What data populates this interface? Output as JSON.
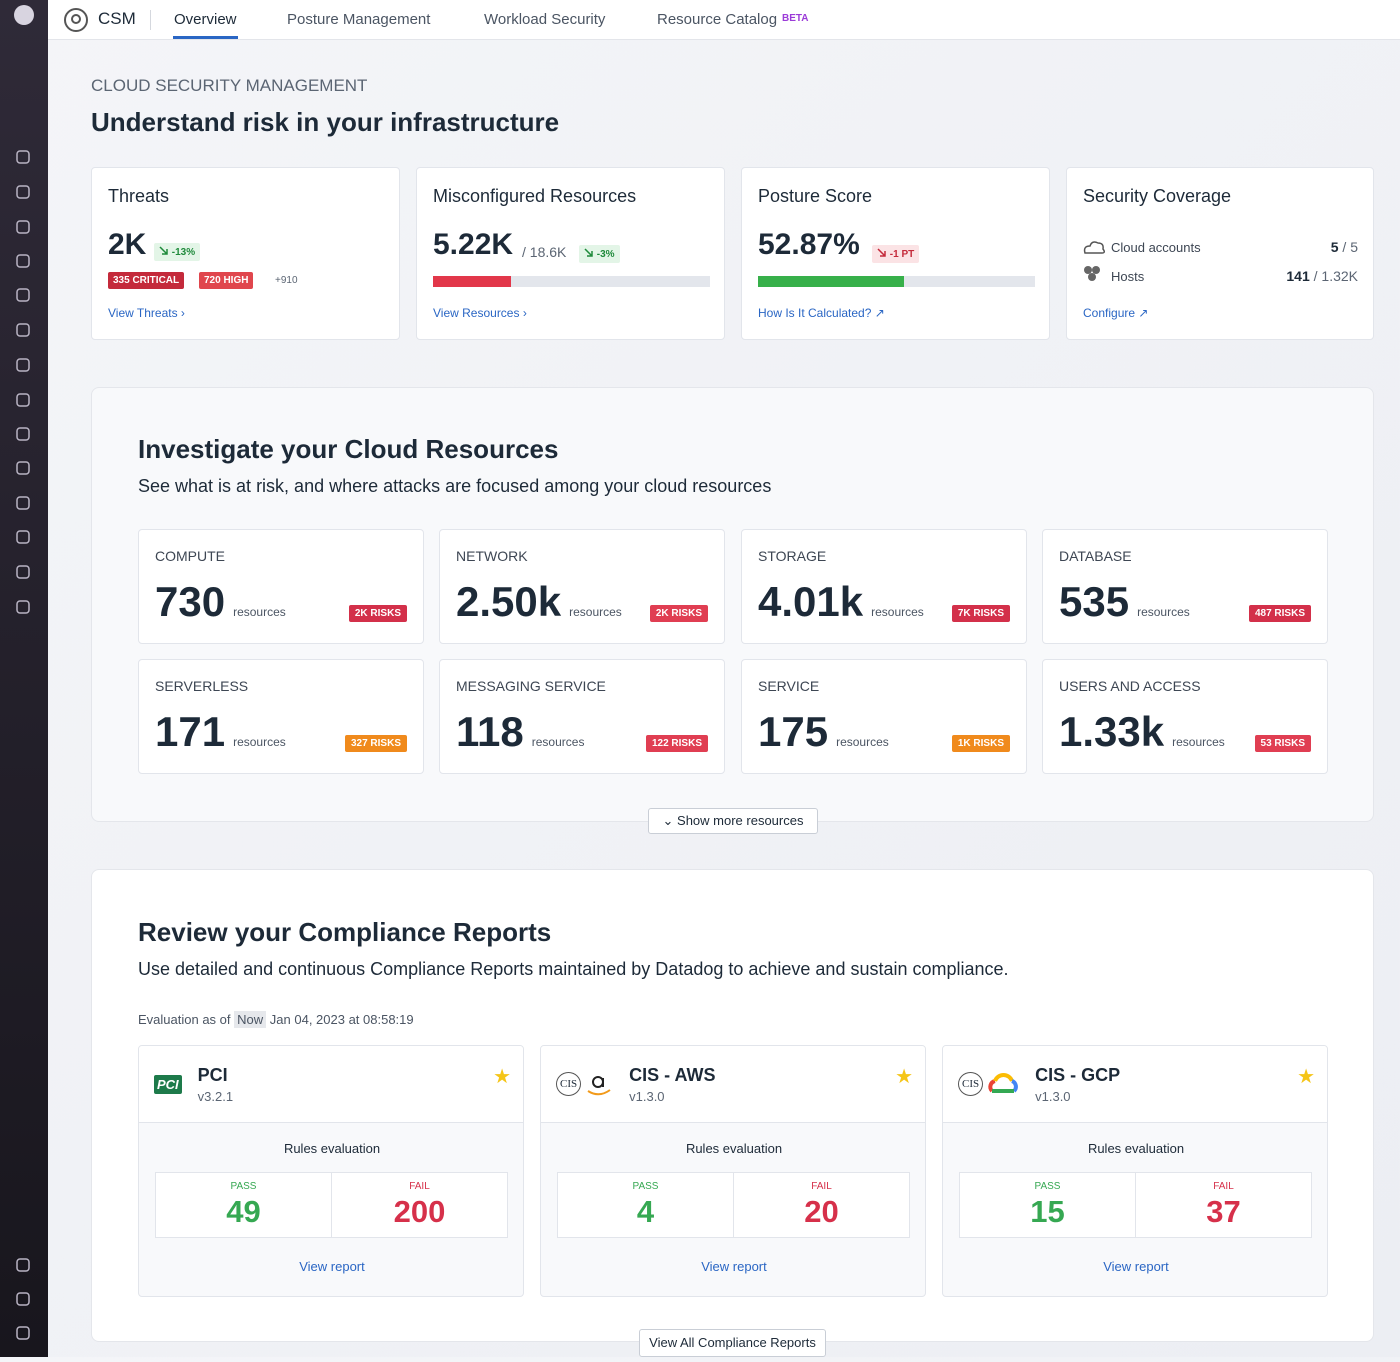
{
  "nav": {
    "app": "CSM",
    "tabs": [
      "Overview",
      "Posture Management",
      "Workload Security",
      "Resource Catalog"
    ],
    "badge": "BETA"
  },
  "header": {
    "eyebrow": "CLOUD SECURITY MANAGEMENT",
    "title": "Understand risk in your infrastructure"
  },
  "summary": {
    "threats": {
      "title": "Threats",
      "value": "2K",
      "change": "-13%",
      "critical": "335 CRITICAL",
      "high": "720 HIGH",
      "more": "+910",
      "link": "View Threats"
    },
    "misconfigured": {
      "title": "Misconfigured Resources",
      "count": {
        "value": 5220,
        "label": "5.22K"
      },
      "total": {
        "value": 18600,
        "label": "/ 18.6K"
      },
      "change": "-3%",
      "link": "View Resources"
    },
    "posture": {
      "title": "Posture Score",
      "score": {
        "value": 52.87,
        "label": "52.87%"
      },
      "change": "-1 PT",
      "link": "How Is It Calculated?"
    },
    "coverage": {
      "title": "Security Coverage",
      "rows": [
        {
          "label": "Cloud accounts",
          "value": "5",
          "total": "/ 5"
        },
        {
          "label": "Hosts",
          "value": "141",
          "total": "/ 1.32K"
        }
      ],
      "link": "Configure"
    }
  },
  "resources": {
    "title": "Investigate your Cloud Resources",
    "subtitle": "See what is at risk, and where attacks are focused among your cloud resources",
    "items": [
      {
        "name": "COMPUTE",
        "count": "730",
        "unit": "resources",
        "risks": "2K RISKS",
        "color": "#d3304a"
      },
      {
        "name": "NETWORK",
        "count": "2.50k",
        "unit": "resources",
        "risks": "2K RISKS",
        "color": "#e03e52"
      },
      {
        "name": "STORAGE",
        "count": "4.01k",
        "unit": "resources",
        "risks": "7K RISKS",
        "color": "#d3304a"
      },
      {
        "name": "DATABASE",
        "count": "535",
        "unit": "resources",
        "risks": "487 RISKS",
        "color": "#d3304a"
      },
      {
        "name": "SERVERLESS",
        "count": "171",
        "unit": "resources",
        "risks": "327 RISKS",
        "color": "#f08a1c"
      },
      {
        "name": "MESSAGING SERVICE",
        "count": "118",
        "unit": "resources",
        "risks": "122 RISKS",
        "color": "#e03e52"
      },
      {
        "name": "SERVICE",
        "count": "175",
        "unit": "resources",
        "risks": "1K RISKS",
        "color": "#f08a1c"
      },
      {
        "name": "USERS AND ACCESS",
        "count": "1.33k",
        "unit": "resources",
        "risks": "53 RISKS",
        "color": "#e03e52"
      }
    ],
    "more": "Show more resources"
  },
  "compliance": {
    "title": "Review your Compliance Reports",
    "subtitle": "Use detailed and continuous Compliance Reports maintained by Datadog to achieve and sustain compliance.",
    "evaluation": {
      "label": "Evaluation as of",
      "badge": "Now",
      "date": "Jan 04, 2023 at 08:58:19"
    },
    "reports": [
      {
        "logo": "PCI",
        "name": "PCI",
        "version": "v3.2.1",
        "rules": "Rules evaluation",
        "pass_label": "PASS",
        "pass": 49,
        "fail_label": "FAIL",
        "fail": 200,
        "link": "View report"
      },
      {
        "logo": "CIS",
        "name": "CIS - AWS",
        "version": "v1.3.0",
        "rules": "Rules evaluation",
        "pass_label": "PASS",
        "pass": 4,
        "fail_label": "FAIL",
        "fail": 20,
        "link": "View report"
      },
      {
        "logo": "CIS",
        "name": "CIS - GCP",
        "version": "v1.3.0",
        "rules": "Rules evaluation",
        "pass_label": "PASS",
        "pass": 15,
        "fail_label": "FAIL",
        "fail": 37,
        "link": "View report"
      }
    ],
    "view_all": "View All Compliance Reports"
  }
}
